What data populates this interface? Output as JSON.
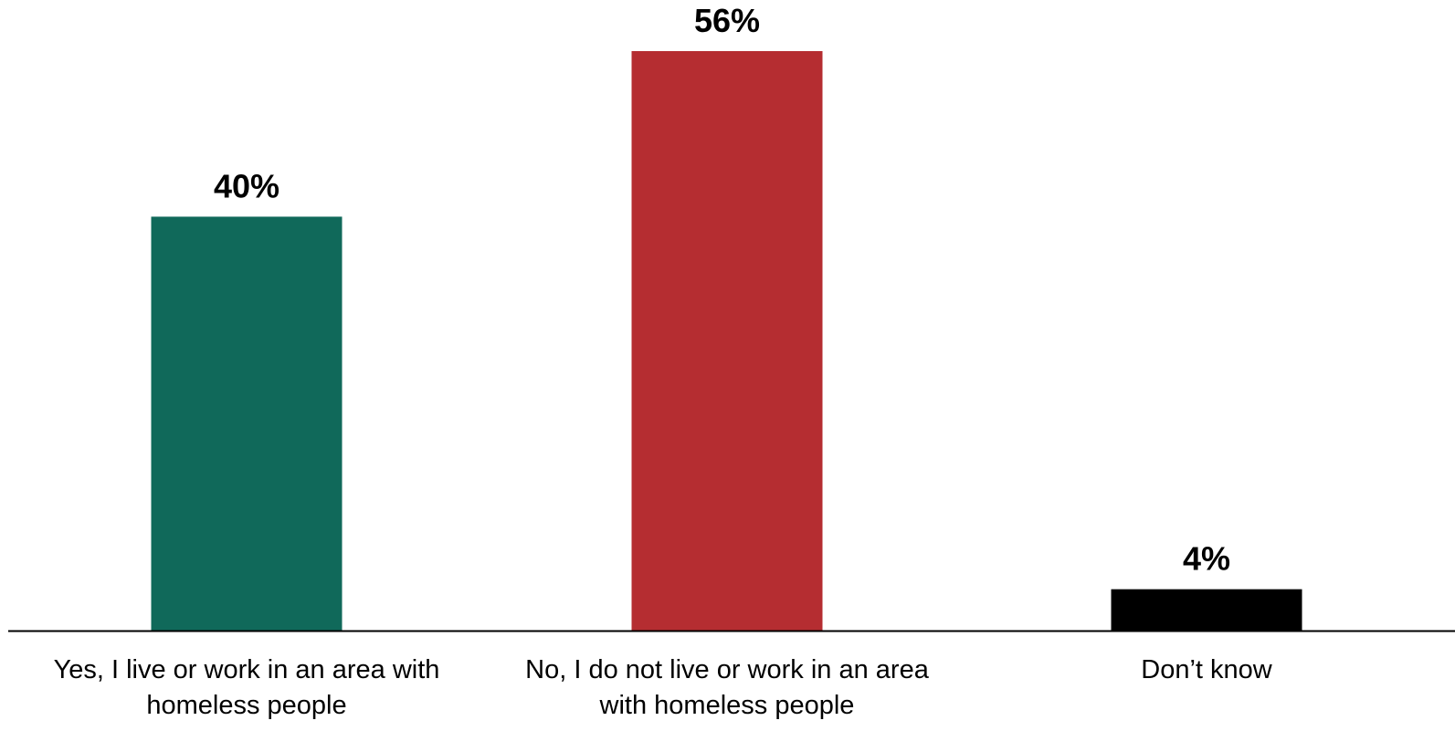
{
  "chart_data": {
    "type": "bar",
    "title": "",
    "xlabel": "",
    "ylabel": "",
    "ylim": [
      0,
      56
    ],
    "grid": false,
    "legend": "none",
    "categories": [
      [
        "Yes, I live or work in an area with",
        "homeless people"
      ],
      [
        "No, I do not live or work in an area",
        "with homeless people"
      ],
      [
        "Don’t know"
      ]
    ],
    "values": [
      40,
      56,
      4
    ],
    "data_labels": [
      "40%",
      "56%",
      "4%"
    ],
    "colors": [
      "#10695a",
      "#b52d31",
      "#000000"
    ],
    "axis_color": "#000000"
  }
}
